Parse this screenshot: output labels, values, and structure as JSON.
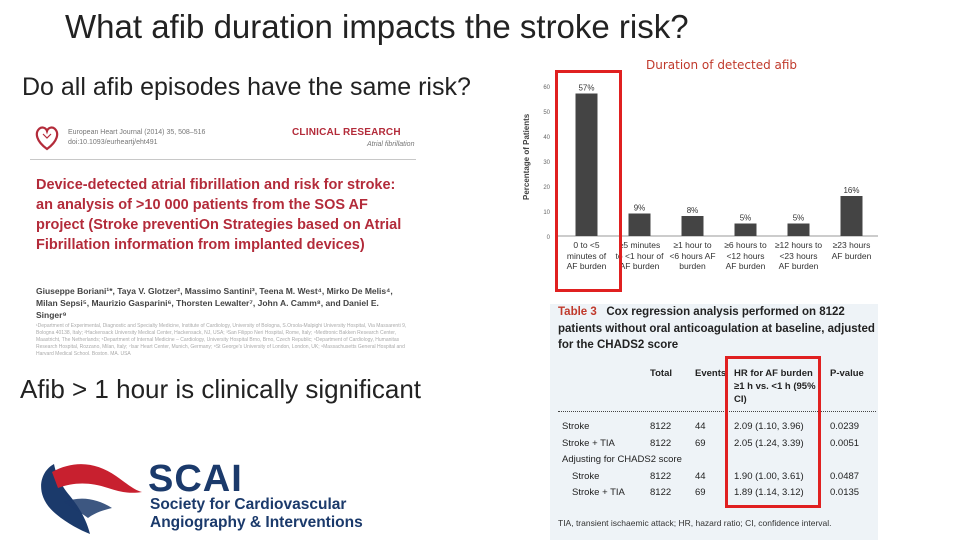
{
  "slide": {
    "title": "What afib duration impacts the stroke risk?",
    "subtitle": "Do all afib episodes have the same risk?",
    "clinical_note": "Afib > 1 hour is clinically significant"
  },
  "paper": {
    "journal_line1": "European Heart Journal (2014) 35, 508–516",
    "journal_line2": "doi:10.1093/eurheartj/eht491",
    "section": "CLINICAL RESEARCH",
    "subsection": "Atrial fibrillation",
    "title": "Device-detected atrial fibrillation and risk for stroke: an analysis of >10 000 patients from the SOS AF project (Stroke preventiOn Strategies based on Atrial Fibrillation information from implanted devices)",
    "authors": "Giuseppe Boriani¹*, Taya V. Glotzer², Massimo Santini³, Teena M. West⁴, Mirko De Melis⁴, Milan Sepsi⁵, Maurizio Gasparini⁶, Thorsten Lewalter⁷, John A. Camm⁸, and Daniel E. Singer⁹",
    "affiliations": "¹Department of Experimental, Diagnostic and Specialty Medicine, Institute of Cardiology, University of Bologna, S.Orsola-Malpighi University Hospital, Via Massarenti 9, Bologna 40138, Italy; ²Hackensack University Medical Center, Hackensack, NJ, USA; ³San Filippo Neri Hospital, Rome, Italy; ⁴Medtronic Bakken Research Center, Maastricht, The Netherlands; ⁵Department of Internal Medicine – Cardiology, University Hospital Brno, Brno, Czech Republic; ⁶Department of Cardiology, Humanitas Research Hospital, Rozzano, Milan, Italy; ⁷Isar Heart Center, Munich, Germany; ⁸St George's University of London, London, UK; ⁹Massachusetts General Hospital and Harvard Medical School, Boston, MA, USA"
  },
  "chart_data": {
    "type": "bar",
    "title": "Duration of detected afib",
    "ylabel": "Percentage of Patients",
    "categories": [
      "0 to <5 minutes of AF burden",
      "≥5 minutes to <1 hour of AF burden",
      "≥1 hour to <6 hours AF burden",
      "≥6 hours to <12 hours AF burden",
      "≥12 hours to <23 hours AF burden",
      "≥23 hours AF burden"
    ],
    "values": [
      57,
      9,
      8,
      5,
      5,
      16
    ],
    "value_labels": [
      "57%",
      "9%",
      "8%",
      "5%",
      "5%",
      "16%"
    ],
    "ylim": [
      0,
      60
    ],
    "bar_color": "#444444",
    "highlight_color": "#e02020"
  },
  "table": {
    "label": "Table 3",
    "caption": "Cox regression analysis performed on 8122 patients without oral anticoagulation at baseline, adjusted for the CHADS2 score",
    "headers": {
      "total": "Total",
      "events": "Events",
      "hr": "HR for AF burden ≥1 h vs. <1 h (95% CI)",
      "pvalue": "P-value"
    },
    "rows": [
      {
        "label": "Stroke",
        "total": "8122",
        "events": "44",
        "hr": "2.09 (1.10, 3.96)",
        "p": "0.0239"
      },
      {
        "label": "Stroke + TIA",
        "total": "8122",
        "events": "69",
        "hr": "2.05 (1.24, 3.39)",
        "p": "0.0051"
      },
      {
        "label": "Adjusting for CHADS2 score",
        "total": "",
        "events": "",
        "hr": "",
        "p": ""
      },
      {
        "label": "Stroke",
        "total": "8122",
        "events": "44",
        "hr": "1.90 (1.00, 3.61)",
        "p": "0.0487"
      },
      {
        "label": "Stroke + TIA",
        "total": "8122",
        "events": "69",
        "hr": "1.89 (1.14, 3.12)",
        "p": "0.0135"
      }
    ],
    "footnote": "TIA, transient ischaemic attack; HR, hazard ratio; CI, confidence interval."
  },
  "logo": {
    "name": "SCAI",
    "line1": "Society for Cardiovascular",
    "line2": "Angiography & Interventions",
    "primary_color": "#1b3a6b",
    "accent_color": "#c8202f"
  }
}
